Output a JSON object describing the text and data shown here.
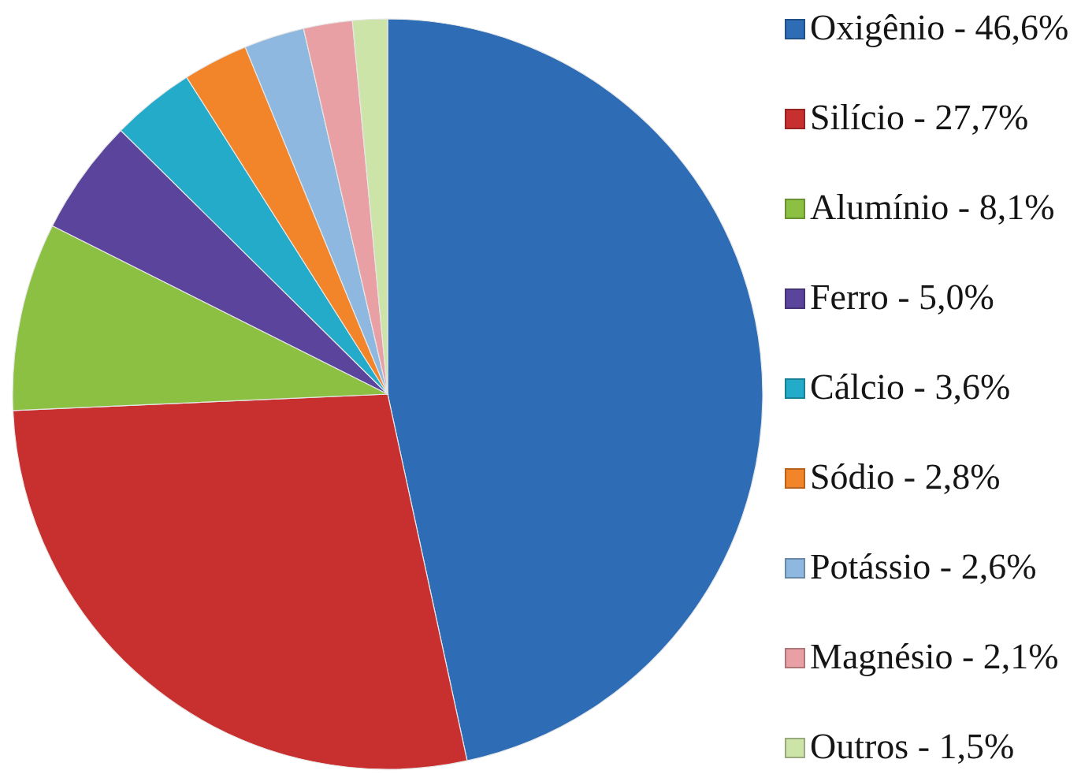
{
  "chart_data": {
    "type": "pie",
    "categories": [
      "Oxigênio - 46,6%",
      "Silício - 27,7%",
      "Alumínio - 8,1%",
      "Ferro - 5,0%",
      "Cálcio - 3,6%",
      "Sódio - 2,8%",
      "Potássio - 2,6%",
      "Magnésio - 2,1%",
      "Outros - 1,5%"
    ],
    "values": [
      46.6,
      27.7,
      8.1,
      5.0,
      3.6,
      2.8,
      2.6,
      2.1,
      1.5
    ],
    "colors": [
      "#2e6db5",
      "#c8302f",
      "#8cc043",
      "#5b449c",
      "#23abc9",
      "#f2842a",
      "#8fb8e0",
      "#e8a0a4",
      "#cde4a8"
    ],
    "legend": "right"
  }
}
